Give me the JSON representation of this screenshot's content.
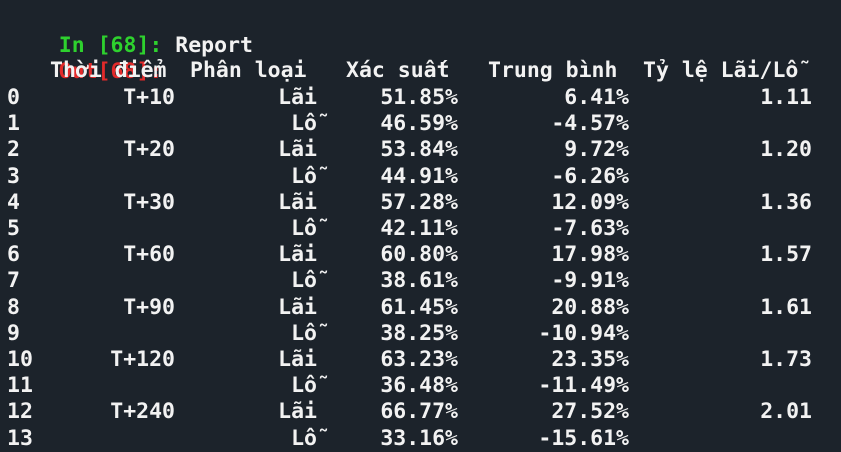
{
  "cell_in": {
    "prompt": "In [68]:",
    "code": "Report"
  },
  "cell_out": {
    "prompt": "Out[68]:"
  },
  "table": {
    "columns": [
      "Thời điểm",
      "Phân loại",
      "Xác suất",
      "Trung bình",
      "Tỷ lệ Lãi/Lỗ"
    ],
    "rows": [
      {
        "index": "0",
        "time": "T+10",
        "type": "Lãi",
        "prob": "51.85%",
        "avg": "6.41%",
        "ratio": "1.11"
      },
      {
        "index": "1",
        "time": "",
        "type": "Lỗ",
        "prob": "46.59%",
        "avg": "-4.57%",
        "ratio": ""
      },
      {
        "index": "2",
        "time": "T+20",
        "type": "Lãi",
        "prob": "53.84%",
        "avg": "9.72%",
        "ratio": "1.20"
      },
      {
        "index": "3",
        "time": "",
        "type": "Lỗ",
        "prob": "44.91%",
        "avg": "-6.26%",
        "ratio": ""
      },
      {
        "index": "4",
        "time": "T+30",
        "type": "Lãi",
        "prob": "57.28%",
        "avg": "12.09%",
        "ratio": "1.36"
      },
      {
        "index": "5",
        "time": "",
        "type": "Lỗ",
        "prob": "42.11%",
        "avg": "-7.63%",
        "ratio": ""
      },
      {
        "index": "6",
        "time": "T+60",
        "type": "Lãi",
        "prob": "60.80%",
        "avg": "17.98%",
        "ratio": "1.57"
      },
      {
        "index": "7",
        "time": "",
        "type": "Lỗ",
        "prob": "38.61%",
        "avg": "-9.91%",
        "ratio": ""
      },
      {
        "index": "8",
        "time": "T+90",
        "type": "Lãi",
        "prob": "61.45%",
        "avg": "20.88%",
        "ratio": "1.61"
      },
      {
        "index": "9",
        "time": "",
        "type": "Lỗ",
        "prob": "38.25%",
        "avg": "-10.94%",
        "ratio": ""
      },
      {
        "index": "10",
        "time": "T+120",
        "type": "Lãi",
        "prob": "63.23%",
        "avg": "23.35%",
        "ratio": "1.73"
      },
      {
        "index": "11",
        "time": "",
        "type": "Lỗ",
        "prob": "36.48%",
        "avg": "-11.49%",
        "ratio": ""
      },
      {
        "index": "12",
        "time": "T+240",
        "type": "Lãi",
        "prob": "66.77%",
        "avg": "27.52%",
        "ratio": "2.01"
      },
      {
        "index": "13",
        "time": "",
        "type": "Lỗ",
        "prob": "33.16%",
        "avg": "-15.61%",
        "ratio": ""
      }
    ]
  },
  "colors": {
    "background": "#1c232b",
    "text": "#f2f2f2",
    "in_prompt": "#2ed12e",
    "out_prompt": "#e22a2a"
  }
}
